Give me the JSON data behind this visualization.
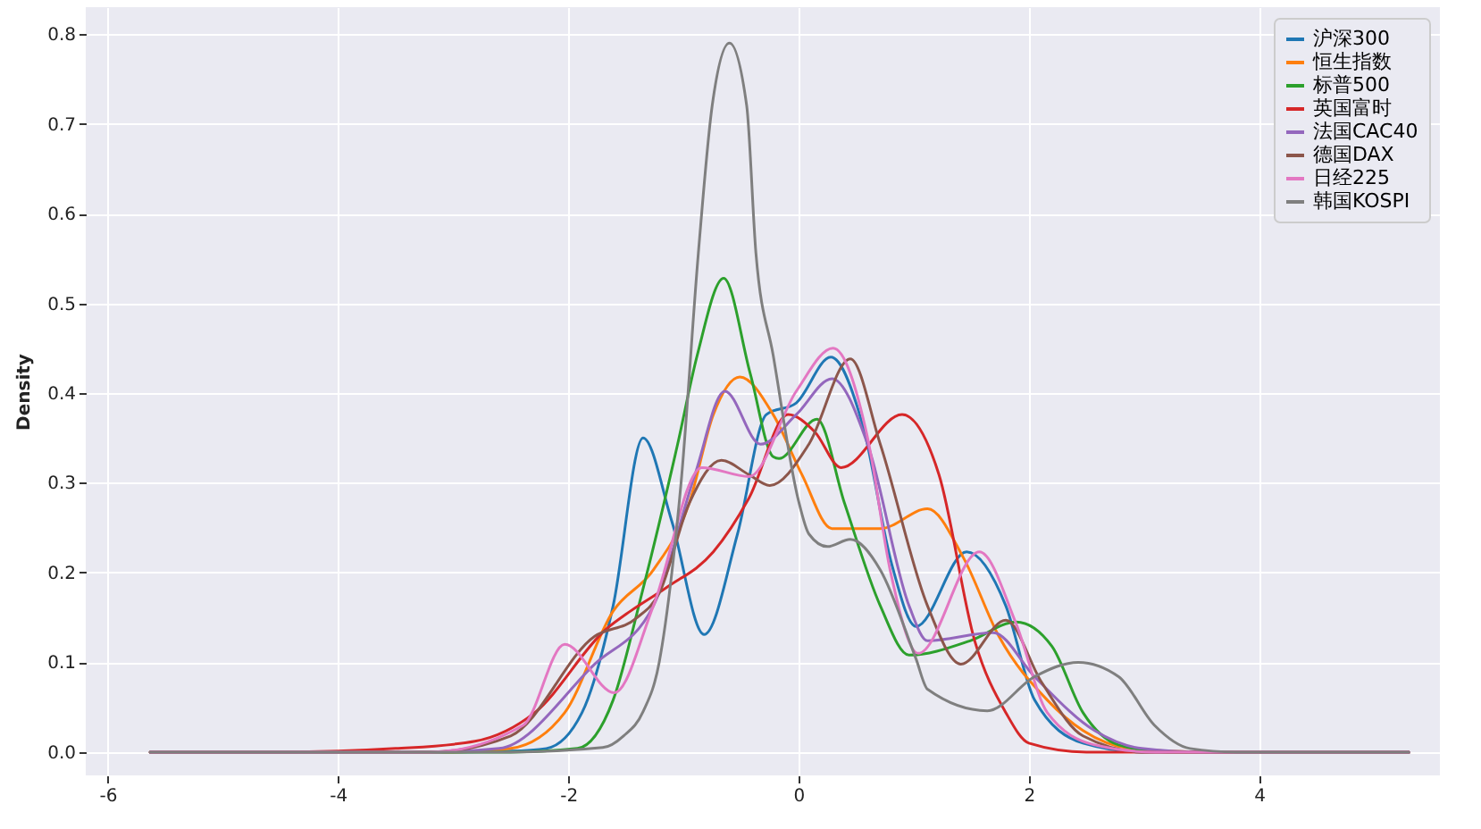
{
  "chart_data": {
    "type": "line",
    "ylabel": "Density",
    "xlim": [
      -6.19,
      5.57
    ],
    "ylim": [
      -0.026,
      0.83
    ],
    "xticks": [
      -6,
      -4,
      -2,
      0,
      2,
      4
    ],
    "yticks": [
      {
        "value": 0,
        "label": "0.0"
      },
      0.1,
      0.2,
      0.3,
      0.4,
      0.5,
      0.6,
      0.7,
      0.8
    ],
    "grid": true,
    "legend": "top right",
    "line_style": "solid",
    "marker": "none",
    "series": [
      {
        "name": "沪深300",
        "color": "#1f77b4",
        "x": [
          -5.63,
          -3,
          -2.5,
          -2.19,
          -1.88,
          -1.61,
          -1.35,
          -1.1,
          -0.82,
          -0.53,
          -0.28,
          -0.02,
          0.28,
          0.56,
          0.81,
          1.02,
          1.46,
          1.8,
          2.05,
          2.47,
          3.0,
          5.3
        ],
        "values": [
          0,
          0,
          0.001,
          0.004,
          0.044,
          0.163,
          0.35,
          0.257,
          0.131,
          0.243,
          0.376,
          0.389,
          0.44,
          0.363,
          0.209,
          0.14,
          0.223,
          0.163,
          0.058,
          0.01,
          0,
          0
        ]
      },
      {
        "name": "恒生指数",
        "color": "#ff7f0e",
        "x": [
          -5.63,
          -3,
          -2.5,
          -2.03,
          -1.61,
          -1.26,
          -0.95,
          -0.74,
          -0.51,
          -0.22,
          0.03,
          0.29,
          0.71,
          1.12,
          1.43,
          1.74,
          2.16,
          2.47,
          2.88,
          3.5,
          5.3
        ],
        "values": [
          0,
          0,
          0.004,
          0.044,
          0.157,
          0.203,
          0.277,
          0.376,
          0.418,
          0.376,
          0.309,
          0.249,
          0.249,
          0.271,
          0.217,
          0.129,
          0.058,
          0.024,
          0.004,
          0,
          0
        ]
      },
      {
        "name": "标普500",
        "color": "#2ca02c",
        "x": [
          -5.63,
          -2.5,
          -1.92,
          -1.61,
          -1.36,
          -1.05,
          -0.88,
          -0.65,
          -0.42,
          -0.22,
          -0.17,
          0.16,
          0.4,
          0.71,
          0.96,
          1.49,
          1.89,
          2.2,
          2.47,
          2.78,
          3.2,
          5.3
        ],
        "values": [
          0,
          0,
          0.004,
          0.058,
          0.177,
          0.343,
          0.442,
          0.528,
          0.422,
          0.329,
          0.327,
          0.371,
          0.277,
          0.163,
          0.108,
          0.124,
          0.145,
          0.118,
          0.044,
          0.008,
          0,
          0
        ]
      },
      {
        "name": "英国富时",
        "color": "#d62728",
        "x": [
          -5.63,
          -4.5,
          -3.5,
          -2.81,
          -2.29,
          -1.67,
          -1.46,
          -1.15,
          -0.74,
          -0.43,
          -0.09,
          0.14,
          0.37,
          0.9,
          1.22,
          1.53,
          1.8,
          2.0,
          2.5,
          5.3
        ],
        "values": [
          0,
          0,
          0.004,
          0.012,
          0.044,
          0.137,
          0.157,
          0.183,
          0.223,
          0.283,
          0.376,
          0.357,
          0.317,
          0.376,
          0.309,
          0.124,
          0.044,
          0.01,
          0,
          0
        ]
      },
      {
        "name": "法国CAC40",
        "color": "#9467bd",
        "x": [
          -5.63,
          -3.2,
          -2.6,
          -1.77,
          -1.26,
          -0.9,
          -0.64,
          -0.33,
          -0.02,
          0.29,
          0.6,
          0.96,
          1.12,
          1.69,
          2.05,
          2.57,
          2.98,
          3.5,
          5.3
        ],
        "values": [
          0,
          0,
          0.004,
          0.098,
          0.163,
          0.309,
          0.402,
          0.343,
          0.376,
          0.416,
          0.343,
          0.163,
          0.124,
          0.133,
          0.084,
          0.024,
          0.004,
          0,
          0
        ]
      },
      {
        "name": "德国DAX",
        "color": "#8c564b",
        "x": [
          -5.63,
          -3.2,
          -2.5,
          -1.77,
          -1.41,
          -1.21,
          -0.95,
          -0.67,
          -0.43,
          -0.25,
          0.09,
          0.45,
          0.71,
          1.12,
          1.41,
          1.8,
          2.11,
          2.47,
          3.0,
          5.3
        ],
        "values": [
          0,
          0,
          0.018,
          0.129,
          0.149,
          0.177,
          0.277,
          0.325,
          0.309,
          0.297,
          0.343,
          0.438,
          0.343,
          0.163,
          0.098,
          0.147,
          0.078,
          0.018,
          0,
          0
        ]
      },
      {
        "name": "日经225",
        "color": "#e377c2",
        "x": [
          -5.63,
          -3.2,
          -2.39,
          -2.03,
          -1.6,
          -1.26,
          -0.84,
          -0.43,
          -0.02,
          0.3,
          0.6,
          0.8,
          1.04,
          1.57,
          1.89,
          2.16,
          2.57,
          3.1,
          5.3
        ],
        "values": [
          0,
          0,
          0.03,
          0.12,
          0.066,
          0.163,
          0.317,
          0.307,
          0.402,
          0.45,
          0.35,
          0.2,
          0.11,
          0.223,
          0.143,
          0.044,
          0.008,
          0,
          0
        ]
      },
      {
        "name": "韩国KOSPI",
        "color": "#7f7f7f",
        "x": [
          -5.63,
          -2.5,
          -1.7,
          -1.52,
          -1.35,
          -1.21,
          -1.1,
          -1.02,
          -0.87,
          -0.75,
          -0.6,
          -0.45,
          -0.37,
          -0.22,
          0,
          0.09,
          0.25,
          0.45,
          0.71,
          1.02,
          1.12,
          1.64,
          2.05,
          2.43,
          2.78,
          3.09,
          3.4,
          3.8,
          5.3
        ],
        "values": [
          0,
          0,
          0.005,
          0.018,
          0.045,
          0.1,
          0.2,
          0.3,
          0.556,
          0.72,
          0.79,
          0.72,
          0.556,
          0.442,
          0.28,
          0.243,
          0.229,
          0.237,
          0.203,
          0.104,
          0.07,
          0.046,
          0.084,
          0.1,
          0.084,
          0.03,
          0.004,
          0,
          0
        ]
      }
    ]
  }
}
